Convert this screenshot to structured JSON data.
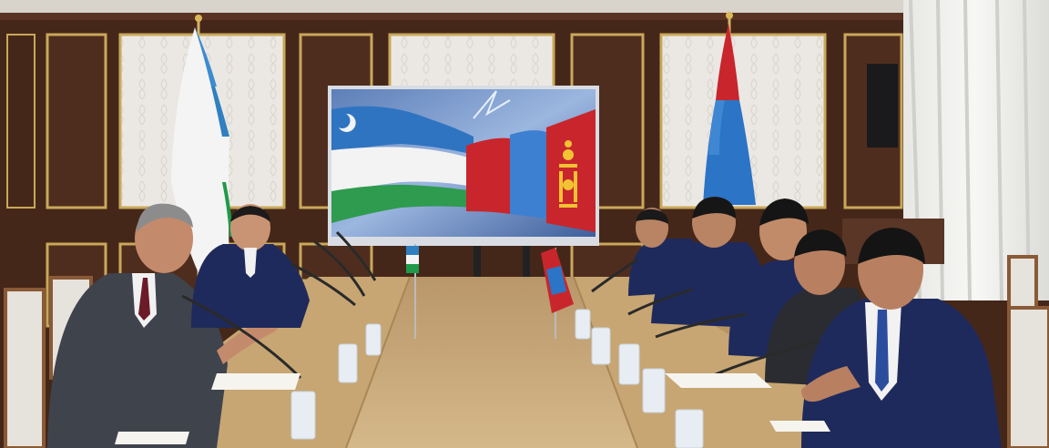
{
  "scene": {
    "title": "",
    "colors": {
      "wall": "#4a2a1c",
      "panel_frame": "#c9a85a",
      "wallpaper": "#e9e6e1",
      "table": "#c8a978",
      "suit_navy": "#1f2a5c",
      "suit_grey": "#3f434c",
      "uzbek_blue": "#2f7fc1",
      "uzbek_green": "#1f9a49",
      "mongol_red": "#c8262c",
      "mongol_blue": "#2b74c6",
      "soyombo_gold": "#f2c233"
    },
    "objects": [
      "uzbekistan-flag",
      "mongolia-flag",
      "screen-with-two-flags",
      "conference-table",
      "desk-microphones",
      "delegates"
    ]
  }
}
